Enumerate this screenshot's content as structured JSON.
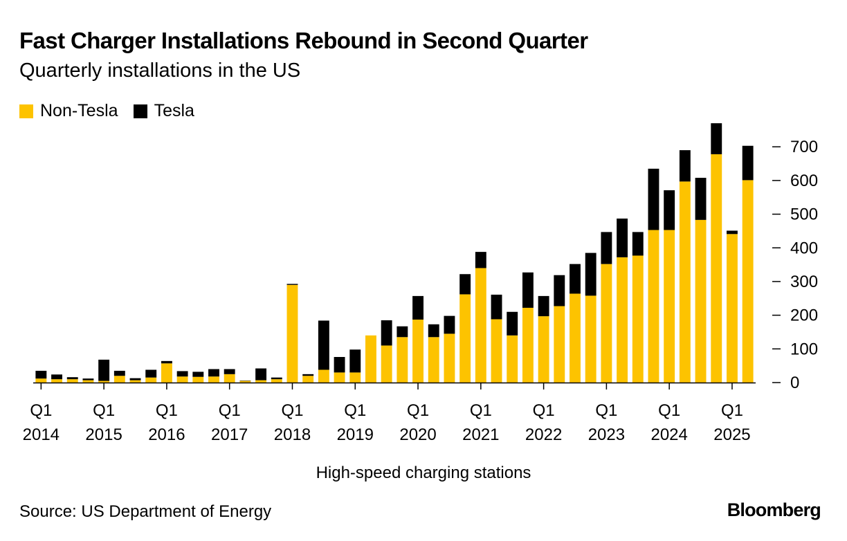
{
  "title": "Fast Charger Installations Rebound in Second Quarter",
  "subtitle": "Quarterly installations in the US",
  "legend": [
    {
      "label": "Non-Tesla",
      "color": "#FDC300"
    },
    {
      "label": "Tesla",
      "color": "#000000"
    }
  ],
  "xlabel": "High-speed charging stations",
  "source": "Source: US Department of Energy",
  "brand": "Bloomberg",
  "chart_data": {
    "type": "bar",
    "stacked": true,
    "grid": false,
    "legend_position": "top-left",
    "y_axis_position": "right",
    "ylim": [
      0,
      760
    ],
    "yticks": [
      0,
      100,
      200,
      300,
      400,
      500,
      600,
      700
    ],
    "categories": [
      "Q1 2014",
      "Q2 2014",
      "Q3 2014",
      "Q4 2014",
      "Q1 2015",
      "Q2 2015",
      "Q3 2015",
      "Q4 2015",
      "Q1 2016",
      "Q2 2016",
      "Q3 2016",
      "Q4 2016",
      "Q1 2017",
      "Q2 2017",
      "Q3 2017",
      "Q4 2017",
      "Q1 2018",
      "Q2 2018",
      "Q3 2018",
      "Q4 2018",
      "Q1 2019",
      "Q2 2019",
      "Q3 2019",
      "Q4 2019",
      "Q1 2020",
      "Q2 2020",
      "Q3 2020",
      "Q4 2020",
      "Q1 2021",
      "Q2 2021",
      "Q3 2021",
      "Q4 2021",
      "Q1 2022",
      "Q2 2022",
      "Q3 2022",
      "Q4 2022",
      "Q1 2023",
      "Q2 2023",
      "Q3 2023",
      "Q4 2023",
      "Q1 2024",
      "Q2 2024",
      "Q3 2024",
      "Q4 2024",
      "Q1 2025",
      "Q2 2025"
    ],
    "xtick_labels": [
      {
        "index": 0,
        "line1": "Q1",
        "line2": "2014"
      },
      {
        "index": 4,
        "line1": "Q1",
        "line2": "2015"
      },
      {
        "index": 8,
        "line1": "Q1",
        "line2": "2016"
      },
      {
        "index": 12,
        "line1": "Q1",
        "line2": "2017"
      },
      {
        "index": 16,
        "line1": "Q1",
        "line2": "2018"
      },
      {
        "index": 20,
        "line1": "Q1",
        "line2": "2019"
      },
      {
        "index": 24,
        "line1": "Q1",
        "line2": "2020"
      },
      {
        "index": 28,
        "line1": "Q1",
        "line2": "2021"
      },
      {
        "index": 32,
        "line1": "Q1",
        "line2": "2022"
      },
      {
        "index": 36,
        "line1": "Q1",
        "line2": "2023"
      },
      {
        "index": 40,
        "line1": "Q1",
        "line2": "2024"
      },
      {
        "index": 44,
        "line1": "Q1",
        "line2": "2025"
      }
    ],
    "series": [
      {
        "name": "Non-Tesla",
        "color": "#FDC300",
        "values": [
          12,
          10,
          10,
          7,
          5,
          20,
          7,
          15,
          57,
          18,
          17,
          18,
          25,
          5,
          7,
          10,
          290,
          20,
          38,
          30,
          30,
          140,
          110,
          135,
          187,
          135,
          145,
          262,
          340,
          188,
          140,
          222,
          197,
          227,
          264,
          258,
          352,
          372,
          377,
          453,
          453,
          597,
          483,
          678,
          441,
          601
        ]
      },
      {
        "name": "Tesla",
        "color": "#000000",
        "values": [
          23,
          14,
          6,
          5,
          63,
          15,
          6,
          23,
          7,
          16,
          15,
          22,
          15,
          1,
          35,
          5,
          3,
          5,
          146,
          46,
          68,
          0,
          75,
          32,
          70,
          38,
          53,
          60,
          48,
          73,
          70,
          105,
          60,
          92,
          88,
          127,
          95,
          115,
          70,
          182,
          118,
          93,
          125,
          92,
          10,
          102
        ]
      }
    ]
  }
}
